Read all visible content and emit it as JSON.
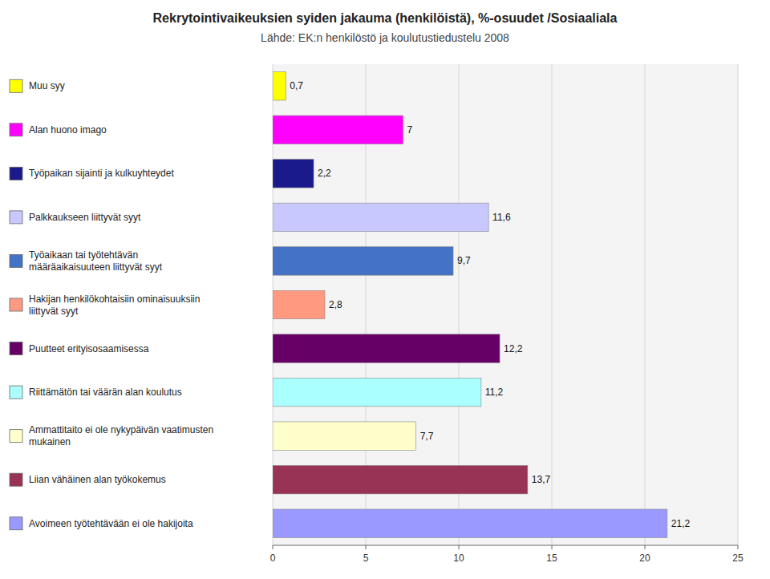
{
  "chart_data": {
    "type": "bar",
    "orientation": "horizontal",
    "title": "Rekrytointivaikeuksien syiden jakauma (henkilöistä), %-osuudet /Sosiaaliala",
    "subtitle": "Lähde: EK:n henkilöstö ja koulutustiedustelu 2008",
    "categories": [
      "Muu syy",
      "Alan huono imago",
      "Työpaikan sijainti ja kulkuyhteydet",
      "Palkkaukseen liittyvät syyt",
      "Työaikaan tai työtehtävän\nmääräaikaisuuteen liittyvät syyt",
      "Hakijan henkilökohtaisiin ominaisuuksiin\nliittyvät syyt",
      "Puutteet erityisosaamisessa",
      "Riittämätön tai väärän alan koulutus",
      "Ammattitaito ei ole nykypäivän vaatimusten\nmukainen",
      "Liian vähäinen alan työkokemus",
      "Avoimeen työtehtävään ei ole hakijoita"
    ],
    "values": [
      0.7,
      7.0,
      2.2,
      11.6,
      9.7,
      2.8,
      12.2,
      11.2,
      7.7,
      13.7,
      21.2
    ],
    "value_labels": [
      "0,7",
      "7",
      "2,2",
      "11,6",
      "9,7",
      "2,8",
      "12,2",
      "11,2",
      "7,7",
      "13,7",
      "21,2"
    ],
    "data_labels": true,
    "colors": [
      "#ffff00",
      "#ff00ff",
      "#1a1a8c",
      "#c8c8ff",
      "#4472c4",
      "#ff9980",
      "#660066",
      "#aaffff",
      "#ffffcc",
      "#993355",
      "#9999ff"
    ],
    "xlim": [
      0,
      25
    ],
    "xticks": [
      0,
      5,
      10,
      15,
      20,
      25
    ],
    "grid": true
  }
}
